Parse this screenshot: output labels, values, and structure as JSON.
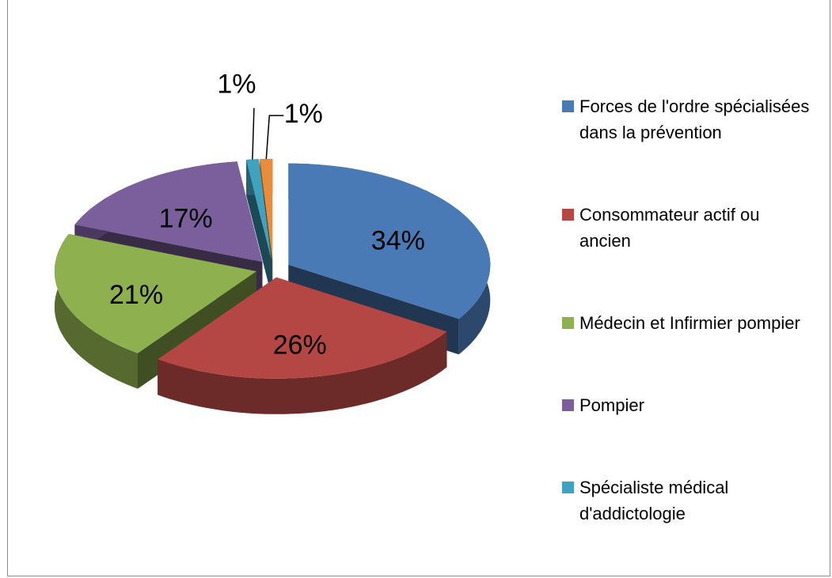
{
  "chart_data": {
    "type": "pie3d",
    "categories": [
      "Forces de l'ordre spécialisées dans la prévention",
      "Consommateur actif ou ancien",
      "Médecin et Infirmier pompier",
      "Pompier",
      "Spécialiste médical d'addictologie",
      null
    ],
    "values": [
      34,
      26,
      21,
      17,
      1,
      1
    ],
    "value_labels": [
      "34%",
      "26%",
      "21%",
      "17%",
      "1%",
      "1%"
    ],
    "colors": [
      "#4a7ab5",
      "#b44744",
      "#8fb04e",
      "#7b5f9c",
      "#3fa3bf",
      "#e88d3b"
    ],
    "legend": "right"
  }
}
